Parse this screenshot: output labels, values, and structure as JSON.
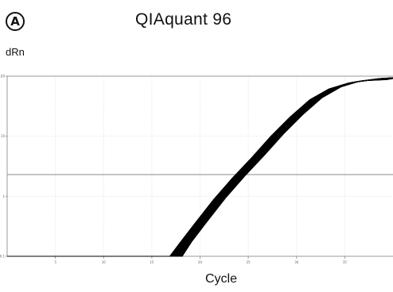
{
  "panel_label": "A",
  "chart_data": {
    "type": "line",
    "title": "QIAquant 96",
    "xlabel": "Cycle",
    "ylabel": "dRn",
    "yscale": "log",
    "xlim": [
      0,
      40
    ],
    "ylim": [
      0.1,
      100
    ],
    "x_ticks": [
      "5",
      "10",
      "15",
      "20",
      "25",
      "30",
      "35"
    ],
    "y_ticks": [
      "0.1",
      "1",
      "10",
      "100"
    ],
    "threshold": 2.3,
    "grid": true,
    "series_count": 24,
    "series_style": "overlapping amplification curves, black",
    "curves_x": [
      0,
      17.5,
      18.5,
      20,
      22,
      24,
      26,
      28,
      30,
      32,
      34,
      36,
      38,
      40
    ],
    "curves_y": [
      0.1,
      0.1,
      0.17,
      0.35,
      0.9,
      2.1,
      4.6,
      10.5,
      22,
      42,
      64,
      80,
      88,
      91
    ]
  },
  "colors": {
    "curve": "#000000",
    "axis": "#9a9a9a",
    "grid": "#e4e4e4",
    "threshold": "#8a8a8a"
  }
}
